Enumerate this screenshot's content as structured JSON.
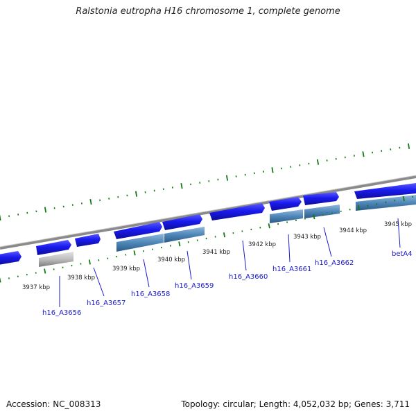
{
  "title": "Ralstonia eutropha H16 chromosome 1, complete genome",
  "accession": "Accession: NC_008313",
  "summary": "Topology: circular; Length: 4,052,032 bp; Genes: 3,711",
  "ruler": {
    "ticks_kbp": [
      "3937 kbp",
      "3938 kbp",
      "3939 kbp",
      "3940 kbp",
      "3941 kbp",
      "3942 kbp",
      "3943 kbp",
      "3944 kbp",
      "3945 kbp"
    ]
  },
  "genes": [
    "h16_A3656",
    "h16_A3657",
    "h16_A3658",
    "h16_A3659",
    "h16_A3660",
    "h16_A3661",
    "h16_A3662",
    "betA4"
  ],
  "colors": {
    "cds": "#1a1aee",
    "gene_feature": "#4f87b8",
    "pseudo_feature": "#bdbdbd",
    "backbone": "#8a8a8a",
    "tick": "#127a12",
    "label": "#1a1acc"
  }
}
